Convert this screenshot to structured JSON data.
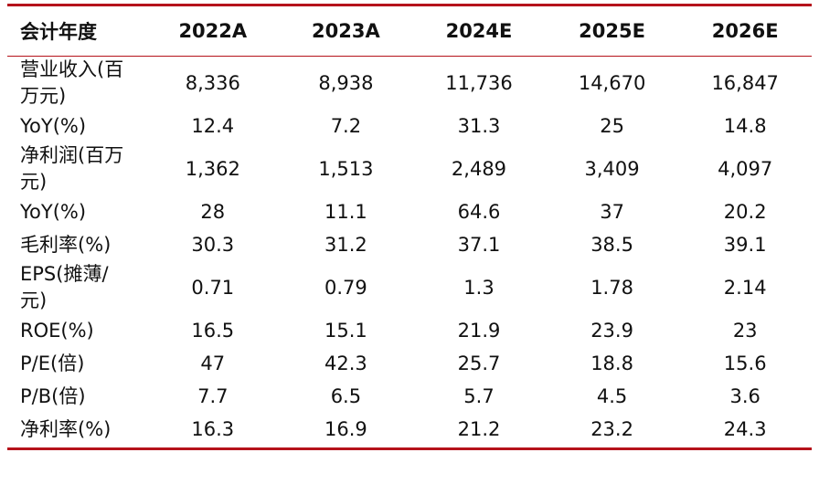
{
  "table": {
    "headers": [
      "会计年度",
      "2022A",
      "2023A",
      "2024E",
      "2025E",
      "2026E"
    ],
    "rows": [
      {
        "label_line1": "营业收入(百",
        "label_line2": "万元)",
        "values": [
          "8,336",
          "8,938",
          "11,736",
          "14,670",
          "16,847"
        ]
      },
      {
        "label_line1": "YoY(%)",
        "label_line2": "",
        "values": [
          "12.4",
          "7.2",
          "31.3",
          "25",
          "14.8"
        ]
      },
      {
        "label_line1": "净利润(百万",
        "label_line2": "元)",
        "values": [
          "1,362",
          "1,513",
          "2,489",
          "3,409",
          "4,097"
        ]
      },
      {
        "label_line1": "YoY(%)",
        "label_line2": "",
        "values": [
          "28",
          "11.1",
          "64.6",
          "37",
          "20.2"
        ]
      },
      {
        "label_line1": "毛利率(%)",
        "label_line2": "",
        "values": [
          "30.3",
          "31.2",
          "37.1",
          "38.5",
          "39.1"
        ]
      },
      {
        "label_line1": "EPS(摊薄/",
        "label_line2": "元)",
        "values": [
          "0.71",
          "0.79",
          "1.3",
          "1.78",
          "2.14"
        ]
      },
      {
        "label_line1": "ROE(%)",
        "label_line2": "",
        "values": [
          "16.5",
          "15.1",
          "21.9",
          "23.9",
          "23"
        ]
      },
      {
        "label_line1": "P/E(倍)",
        "label_line2": "",
        "values": [
          "47",
          "42.3",
          "25.7",
          "18.8",
          "15.6"
        ]
      },
      {
        "label_line1": "P/B(倍)",
        "label_line2": "",
        "values": [
          "7.7",
          "6.5",
          "5.7",
          "4.5",
          "3.6"
        ]
      },
      {
        "label_line1": "净利率(%)",
        "label_line2": "",
        "values": [
          "16.3",
          "16.9",
          "21.2",
          "23.2",
          "24.3"
        ]
      }
    ]
  },
  "colors": {
    "rule": "#b5121b",
    "text": "#111111"
  }
}
